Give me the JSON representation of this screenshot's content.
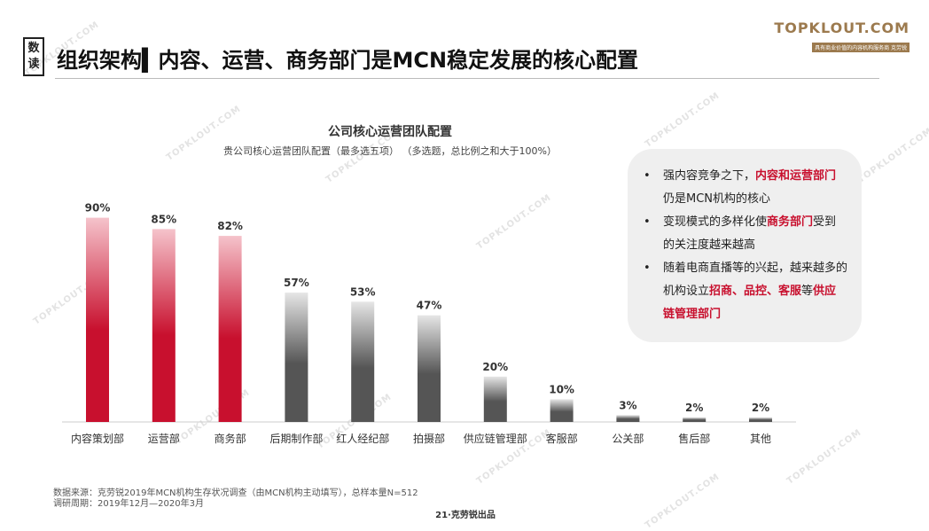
{
  "badge": {
    "top": "数",
    "bottom": "读"
  },
  "title": "组织架构▍内容、运营、商务部门是MCN稳定发展的核心配置",
  "logo": {
    "main": "TOPKLOUT.COM",
    "sub": "具有商业价值的内容机构服务商  克劳锐"
  },
  "watermark": "TOPKLOUT.COM",
  "chart_data": {
    "type": "bar",
    "title": "公司核心运营团队配置",
    "subtitle": "贵公司核心运营团队配置（最多选五项）  （多选题，总比例之和大于100%）",
    "categories": [
      "内容策划部",
      "运营部",
      "商务部",
      "后期制作部",
      "红人经纪部",
      "拍摄部",
      "供应链管理部",
      "客服部",
      "公关部",
      "售后部",
      "其他"
    ],
    "values": [
      90,
      85,
      82,
      57,
      53,
      47,
      20,
      10,
      3,
      2,
      2
    ],
    "value_labels": [
      "90%",
      "85%",
      "82%",
      "57%",
      "53%",
      "47%",
      "20%",
      "10%",
      "3%",
      "2%",
      "2%"
    ],
    "highlight": [
      true,
      true,
      true,
      false,
      false,
      false,
      false,
      false,
      false,
      false,
      false
    ],
    "ylim": [
      0,
      100
    ],
    "xlabel": "",
    "ylabel": "",
    "grid": false,
    "colors": {
      "highlight": "#c8102e",
      "highlight_light": "#f5c3cb",
      "normal": "#555555",
      "normal_light": "#e6e6e6"
    }
  },
  "callout": {
    "items": [
      [
        {
          "t": "强内容竞争之下，",
          "h": false
        },
        {
          "t": "内容和运营部门",
          "h": true
        },
        {
          "t": "仍是MCN机构的核心",
          "h": false
        }
      ],
      [
        {
          "t": "变现模式的多样化使",
          "h": false
        },
        {
          "t": "商务部门",
          "h": true
        },
        {
          "t": "受到的关注度越来越高",
          "h": false
        }
      ],
      [
        {
          "t": "随着电商直播等的兴起，越来越多的机构设立",
          "h": false
        },
        {
          "t": "招商、品控、客服",
          "h": true
        },
        {
          "t": "等",
          "h": false
        },
        {
          "t": "供应链管理部门",
          "h": true
        }
      ]
    ]
  },
  "footer": {
    "source": "数据来源：克劳锐2019年MCN机构生存状况调查（由MCN机构主动填写），总样本量N=512",
    "period": "调研周期：2019年12月—2020年3月"
  },
  "page": "21·克劳锐出品"
}
